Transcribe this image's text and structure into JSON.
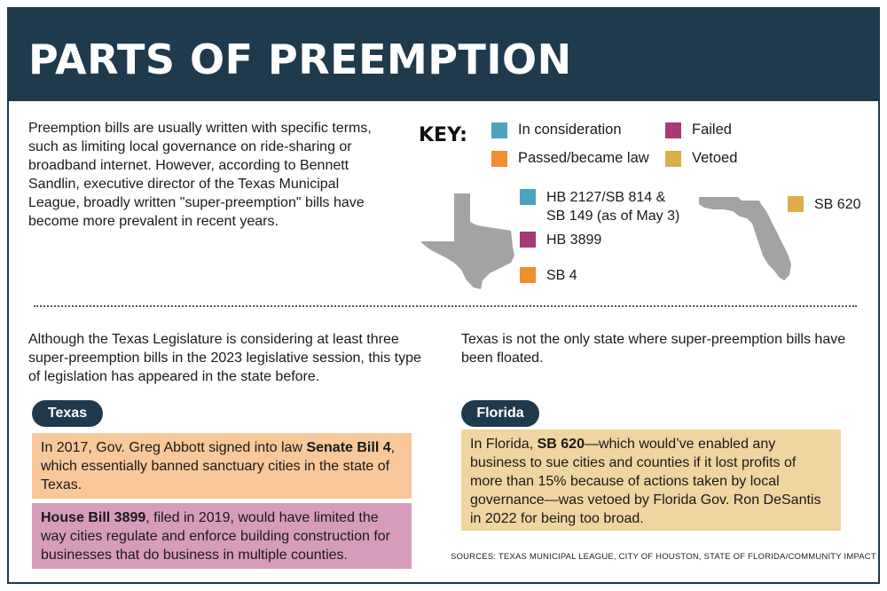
{
  "title": "PARTS OF PREEMPTION",
  "intro": "Preemption bills are usually written with specific terms, such as limiting local governance on ride-sharing or broadband internet. However, according to Bennett Sandlin, executive director of the Texas Municipal League, broadly written \"super-preemption\" bills have become more prevalent in recent years.",
  "key": {
    "title": "KEY:",
    "items": [
      {
        "label": "In consideration",
        "color": "#4aa3bf"
      },
      {
        "label": "Failed",
        "color": "#a63a73"
      },
      {
        "label": "Passed/became law",
        "color": "#f28d30"
      },
      {
        "label": "Vetoed",
        "color": "#dcae4a"
      }
    ]
  },
  "texas_bills": [
    {
      "line1": "HB 2127/SB 814 &",
      "line2": "SB 149 (as of May 3)",
      "status": "In consideration"
    },
    {
      "line1": "HB 3899",
      "line2": "",
      "status": "Failed"
    },
    {
      "line1": "SB 4",
      "line2": "",
      "status": "Passed/became law"
    }
  ],
  "florida_bills": [
    {
      "line1": "SB 620",
      "status": "Vetoed"
    }
  ],
  "texas_section": {
    "intro": "Although the Texas Legislature is considering at least three super-preemption bills in the 2023 legislative session, this type of legislation has appeared in the state before.",
    "label": "Texas",
    "box1": {
      "pre": "In 2017, Gov. Greg Abbott signed into law ",
      "bold": "Senate Bill 4",
      "post": ", which essentially banned sanctuary cities in the state of Texas."
    },
    "box2": {
      "pre": "",
      "bold": "House Bill 3899",
      "post": ", filed in 2019, would have limited the way cities regulate and enforce building construction for businesses that do business in multiple counties."
    }
  },
  "florida_section": {
    "intro": "Texas is not the only state where super-preemption bills have been floated.",
    "label": "Florida",
    "box": {
      "pre": "In Florida, ",
      "bold": "SB 620",
      "post": "—which would’ve enabled any business to sue cities and counties if it lost profits of more than 15% because of actions taken by local governance—was vetoed by Florida Gov. Ron DeSantis in 2022 for being too broad."
    }
  },
  "sources": "SOURCES: TEXAS MUNICIPAL LEAGUE, CITY OF HOUSTON, STATE OF FLORIDA/COMMUNITY IMPACT",
  "colors": {
    "navy": "#1f3a4d",
    "map_gray": "#a3a3a3",
    "box_orange": "#f8c79a",
    "box_pink": "#d79cbb",
    "box_tan": "#efd59f"
  }
}
